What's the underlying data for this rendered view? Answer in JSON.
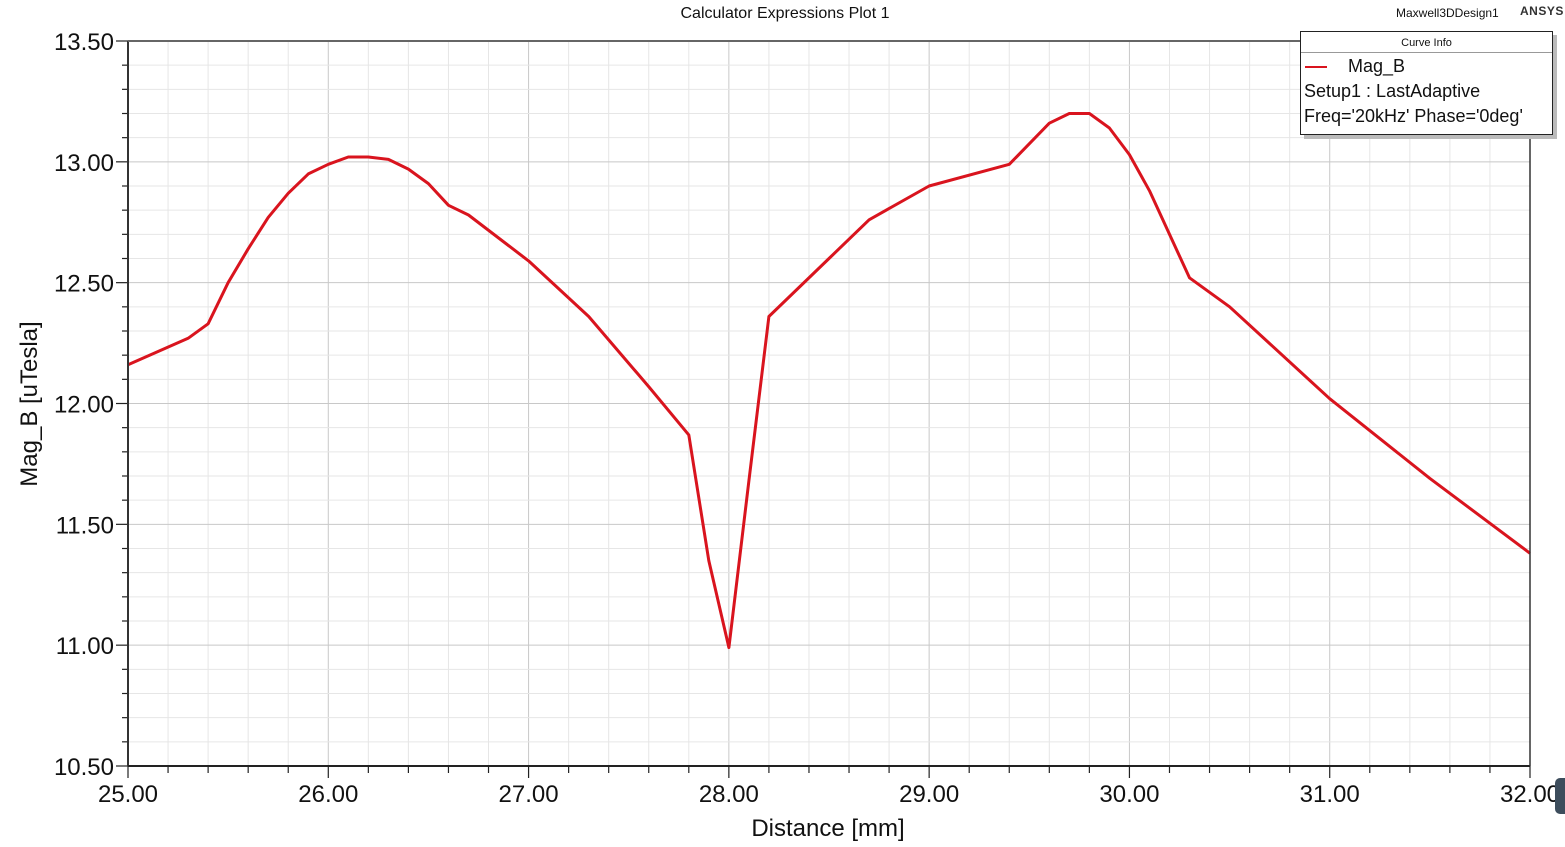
{
  "header": {
    "title": "Calculator Expressions Plot 1",
    "design_name": "Maxwell3DDesign1",
    "brand": "ANSYS"
  },
  "legend": {
    "title": "Curve Info",
    "curve_name": "Mag_B",
    "setup": "Setup1 : LastAdaptive",
    "params": "Freq='20kHz' Phase='0deg'",
    "color": "#d9141e"
  },
  "axes": {
    "xlabel": "Distance [mm]",
    "ylabel": "Mag_B [uTesla]"
  },
  "chart_data": {
    "type": "line",
    "title": "Calculator Expressions Plot 1",
    "xlabel": "Distance [mm]",
    "ylabel": "Mag_B [uTesla]",
    "xlim": [
      25.0,
      32.0
    ],
    "ylim": [
      10.5,
      13.5
    ],
    "x_ticks": [
      "25.00",
      "26.00",
      "27.00",
      "28.00",
      "29.00",
      "30.00",
      "31.00",
      "32.00"
    ],
    "y_ticks": [
      "10.50",
      "11.00",
      "11.50",
      "12.00",
      "12.50",
      "13.00",
      "13.50"
    ],
    "grid": true,
    "legend_position": "top-right",
    "series": [
      {
        "name": "Mag_B",
        "color": "#d9141e",
        "x": [
          25.0,
          25.3,
          25.4,
          25.5,
          25.6,
          25.7,
          25.8,
          25.9,
          26.0,
          26.1,
          26.2,
          26.3,
          26.4,
          26.5,
          26.6,
          26.7,
          27.0,
          27.3,
          27.6,
          27.8,
          27.9,
          28.0,
          28.1,
          28.2,
          28.5,
          28.7,
          29.0,
          29.4,
          29.6,
          29.7,
          29.8,
          29.9,
          30.0,
          30.1,
          30.3,
          30.5,
          31.0,
          31.5,
          32.0
        ],
        "values": [
          12.16,
          12.27,
          12.33,
          12.5,
          12.64,
          12.77,
          12.87,
          12.95,
          12.99,
          13.02,
          13.02,
          13.01,
          12.97,
          12.91,
          12.82,
          12.78,
          12.59,
          12.36,
          12.07,
          11.87,
          11.35,
          10.99,
          11.68,
          12.36,
          12.6,
          12.76,
          12.9,
          12.99,
          13.16,
          13.2,
          13.2,
          13.14,
          13.03,
          12.88,
          12.52,
          12.4,
          12.02,
          11.69,
          11.38
        ]
      }
    ]
  }
}
